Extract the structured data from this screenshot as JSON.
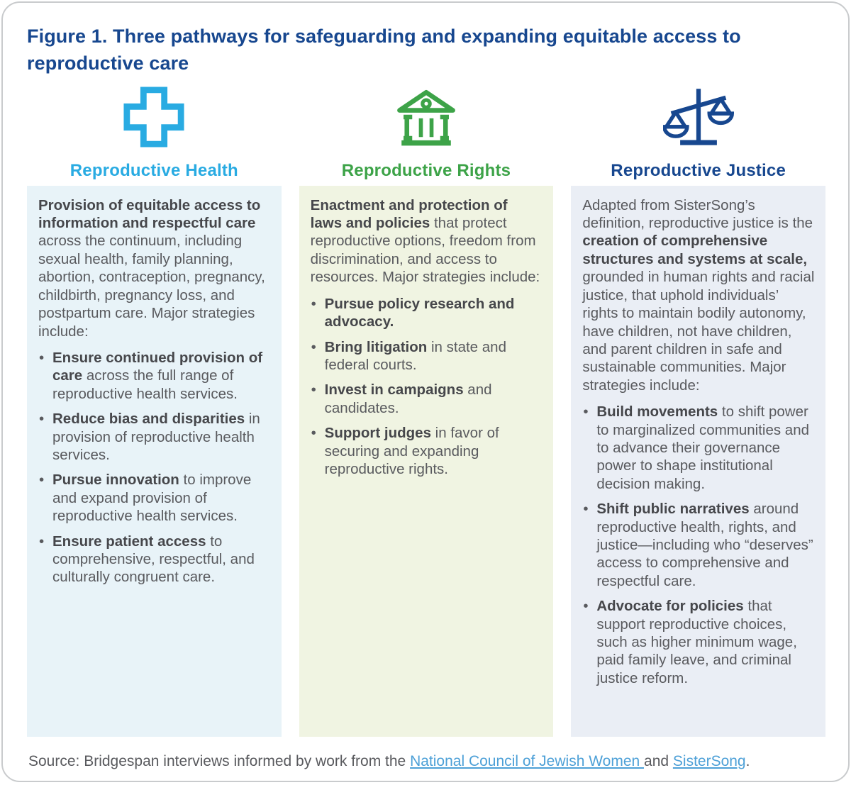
{
  "figure": {
    "title": "Figure 1. Three pathways for safeguarding and expanding equitable access to reproductive care",
    "title_color": "#17478f"
  },
  "columns": [
    {
      "id": "health",
      "icon": "medical-cross-icon",
      "accent_color": "#29abe2",
      "box_bg_color": "#e8f3f8",
      "heading": "Reproductive Health",
      "intro": [
        {
          "b": true,
          "t": "Provision of equitable access to information and respectful care"
        },
        {
          "b": false,
          "t": " across the continuum, including sexual health, family planning, abortion, contraception, pregnancy, childbirth, pregnancy loss, and postpartum care. Major strategies include:"
        }
      ],
      "bullets": [
        [
          {
            "b": true,
            "t": "Ensure continued provision of care"
          },
          {
            "b": false,
            "t": " across the full range of reproductive health services."
          }
        ],
        [
          {
            "b": true,
            "t": "Reduce bias and disparities"
          },
          {
            "b": false,
            "t": " in provision of reproductive health services."
          }
        ],
        [
          {
            "b": true,
            "t": "Pursue innovation"
          },
          {
            "b": false,
            "t": " to improve and expand provision of reproductive health services."
          }
        ],
        [
          {
            "b": true,
            "t": "Ensure patient access"
          },
          {
            "b": false,
            "t": " to comprehensive, respectful, and culturally congruent care."
          }
        ]
      ]
    },
    {
      "id": "rights",
      "icon": "courthouse-icon",
      "accent_color": "#3da348",
      "box_bg_color": "#f0f4e2",
      "heading": "Reproductive Rights",
      "intro": [
        {
          "b": true,
          "t": "Enactment and protection of laws and policies"
        },
        {
          "b": false,
          "t": " that protect reproductive options, freedom from discrimination, and access to resources. Major strategies include:"
        }
      ],
      "bullets": [
        [
          {
            "b": true,
            "t": "Pursue policy research and advocacy."
          }
        ],
        [
          {
            "b": true,
            "t": "Bring litigation"
          },
          {
            "b": false,
            "t": " in state and federal courts."
          }
        ],
        [
          {
            "b": true,
            "t": "Invest in campaigns"
          },
          {
            "b": false,
            "t": " and candidates."
          }
        ],
        [
          {
            "b": true,
            "t": "Support judges"
          },
          {
            "b": false,
            "t": " in favor of securing and expanding reproductive rights."
          }
        ]
      ]
    },
    {
      "id": "justice",
      "icon": "scales-of-justice-icon",
      "accent_color": "#17478f",
      "box_bg_color": "#eaeef5",
      "heading": "Reproductive Justice",
      "intro": [
        {
          "b": false,
          "t": "Adapted from SisterSong’s definition, reproductive justice is the "
        },
        {
          "b": true,
          "t": "creation of comprehensive structures and systems at scale,"
        },
        {
          "b": false,
          "t": " grounded in human rights and racial justice, that uphold individuals’ rights to maintain bodily autonomy, have children, not have children, and parent children in safe and sustainable communities. Major strategies include:"
        }
      ],
      "bullets": [
        [
          {
            "b": true,
            "t": "Build movements"
          },
          {
            "b": false,
            "t": " to shift power to marginalized communities and to advance their governance power to shape institutional decision making."
          }
        ],
        [
          {
            "b": true,
            "t": "Shift public narratives"
          },
          {
            "b": false,
            "t": " around reproductive health, rights, and justice—including who “deserves” access to comprehensive and respectful care."
          }
        ],
        [
          {
            "b": true,
            "t": "Advocate for policies"
          },
          {
            "b": false,
            "t": " that support reproductive choices, such as higher minimum wage, paid family leave, and criminal justice reform."
          }
        ]
      ]
    }
  ],
  "source": {
    "link_color": "#4da0d7",
    "segments": [
      {
        "link": false,
        "t": "Source: Bridgespan interviews informed by work from the "
      },
      {
        "link": true,
        "t": "National Council of Jewish Women ",
        "name": "source-link-ncjw"
      },
      {
        "link": false,
        "t": "and "
      },
      {
        "link": true,
        "t": "SisterSong",
        "name": "source-link-sistersong"
      },
      {
        "link": false,
        "t": "."
      }
    ]
  }
}
